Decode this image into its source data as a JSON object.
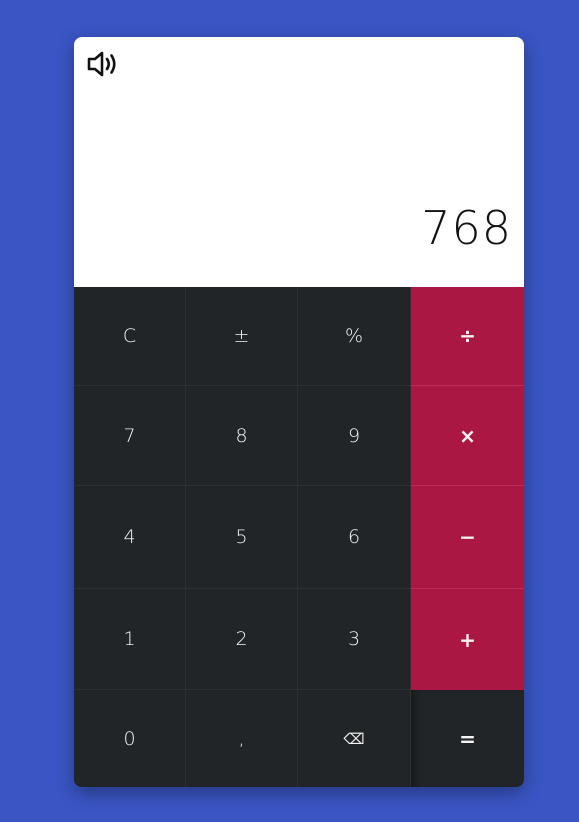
{
  "display": {
    "value": "768",
    "sound_icon": "speaker-volume-icon"
  },
  "keys": {
    "clear": "C",
    "plus_minus": "±",
    "percent": "%",
    "divide": "÷",
    "seven": "7",
    "eight": "8",
    "nine": "9",
    "multiply": "×",
    "four": "4",
    "five": "5",
    "six": "6",
    "subtract": "−",
    "one": "1",
    "two": "2",
    "three": "3",
    "add": "+",
    "zero": "0",
    "decimal": ",",
    "backspace": "⌫",
    "equals": "="
  },
  "colors": {
    "background": "#3a56c4",
    "panel": "#212527",
    "operator": "#a91742",
    "display_bg": "#ffffff"
  }
}
